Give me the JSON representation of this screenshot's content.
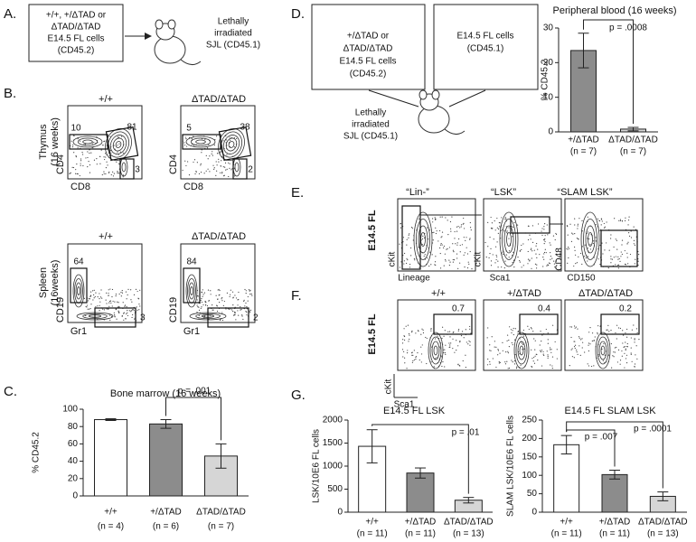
{
  "panel_labels": [
    "A.",
    "B.",
    "C.",
    "D.",
    "E.",
    "F.",
    "G."
  ],
  "panel_a": {
    "donor_box": [
      "+/+, +/ΔTAD or",
      "ΔTAD/ΔTAD",
      "E14.5 FL cells",
      "(CD45.2)"
    ],
    "recipient": [
      "Lethally",
      "irradiated",
      "SJL (CD45.1)"
    ]
  },
  "panel_b": {
    "thymus": {
      "row_label": [
        "Thymus",
        "(16 weeks)"
      ],
      "plots": [
        {
          "title": "+/+",
          "y_axis": "CD4",
          "x_axis": "CD8",
          "gates": [
            10,
            81,
            3
          ]
        },
        {
          "title": "ΔTAD/ΔTAD",
          "y_axis": "CD4",
          "x_axis": "CD8",
          "gates": [
            5,
            38,
            2
          ]
        }
      ]
    },
    "spleen": {
      "row_label": [
        "Spleen",
        "(16weeks)"
      ],
      "plots": [
        {
          "title": "+/+",
          "y_axis": "CD19",
          "x_axis": "Gr1",
          "gates": [
            64,
            3
          ]
        },
        {
          "title": "ΔTAD/ΔTAD",
          "y_axis": "CD19",
          "x_axis": "Gr1",
          "gates": [
            84,
            2
          ]
        }
      ]
    }
  },
  "panel_d": {
    "donor_box": [
      "+/ΔTAD or",
      "ΔTAD/ΔTAD",
      "E14.5 FL cells",
      "(CD45.2)"
    ],
    "competitor_box": [
      "E14.5 FL cells",
      "(CD45.1)"
    ],
    "recipient": [
      "Lethally",
      "irradiated",
      "SJL (CD45.1)"
    ]
  },
  "panel_e": {
    "row_label": "E14.5 FL",
    "plots": [
      {
        "title": "“Lin-”",
        "y_axis": "cKit",
        "x_axis": "Lineage"
      },
      {
        "title": "“LSK”",
        "y_axis": "cKit",
        "x_axis": "Sca1"
      },
      {
        "title": "“SLAM LSK”",
        "y_axis": "CD48",
        "x_axis": "CD150"
      }
    ]
  },
  "panel_f": {
    "row_label": "E14.5 FL",
    "y_axis": "cKit",
    "x_axis": "Sca1",
    "plots": [
      {
        "title": "+/+",
        "gate": 0.7
      },
      {
        "title": "+/ΔTAD",
        "gate": 0.4
      },
      {
        "title": "ΔTAD/ΔTAD",
        "gate": 0.2
      }
    ]
  },
  "chart_data": [
    {
      "type": "bar",
      "title": "Bone marrow (16 weeks)",
      "y_label": "% CD45.2",
      "categories": [
        "+/+",
        "+/ΔTAD",
        "ΔTAD/ΔTAD"
      ],
      "sample_sizes": [
        "(n = 4)",
        "(n = 6)",
        "(n = 7)"
      ],
      "values": [
        88,
        83,
        46
      ],
      "errors": [
        1,
        5,
        14
      ],
      "colors": [
        "#ffffff",
        "#8c8c8c",
        "#d6d6d6"
      ],
      "ylim": [
        0,
        100
      ],
      "yticks": [
        0,
        20,
        40,
        60,
        80,
        100
      ],
      "annotations": [
        "p = .001"
      ]
    },
    {
      "type": "bar",
      "title": "Peripheral blood (16 weeks)",
      "y_label": "% CD45.2",
      "categories": [
        "+/ΔTAD",
        "ΔTAD/ΔTAD"
      ],
      "sample_sizes": [
        "(n = 7)",
        "(n = 7)"
      ],
      "values": [
        23.5,
        0.8
      ],
      "errors": [
        5,
        0.5
      ],
      "colors": [
        "#8c8c8c",
        "#d6d6d6"
      ],
      "ylim": [
        0,
        30
      ],
      "yticks": [
        0,
        10,
        20,
        30
      ],
      "annotations": [
        "p = .0008"
      ]
    },
    {
      "type": "bar",
      "title": "E14.5 FL LSK",
      "y_label": "LSK/10E6 FL cells",
      "categories": [
        "+/+",
        "+/ΔTAD",
        "ΔTAD/ΔTAD"
      ],
      "sample_sizes": [
        "(n = 11)",
        "(n = 11)",
        "(n = 13)"
      ],
      "values": [
        1430,
        850,
        260
      ],
      "errors": [
        360,
        110,
        60
      ],
      "colors": [
        "#ffffff",
        "#8c8c8c",
        "#d6d6d6"
      ],
      "ylim": [
        0,
        2000
      ],
      "yticks": [
        0,
        500,
        1000,
        1500,
        2000
      ],
      "annotations": [
        "p = .01"
      ]
    },
    {
      "type": "bar",
      "title": "E14.5 FL SLAM LSK",
      "y_label": "SLAM LSK/10E6 FL cells",
      "categories": [
        "+/+",
        "+/ΔTAD",
        "ΔTAD/ΔTAD"
      ],
      "sample_sizes": [
        "(n = 11)",
        "(n = 11)",
        "(n = 13)"
      ],
      "values": [
        183,
        102,
        43
      ],
      "errors": [
        25,
        12,
        12
      ],
      "colors": [
        "#ffffff",
        "#8c8c8c",
        "#d6d6d6"
      ],
      "ylim": [
        0,
        250
      ],
      "yticks": [
        0,
        50,
        100,
        150,
        200,
        250
      ],
      "annotations": [
        "p = .007",
        "p = .0001"
      ]
    }
  ]
}
